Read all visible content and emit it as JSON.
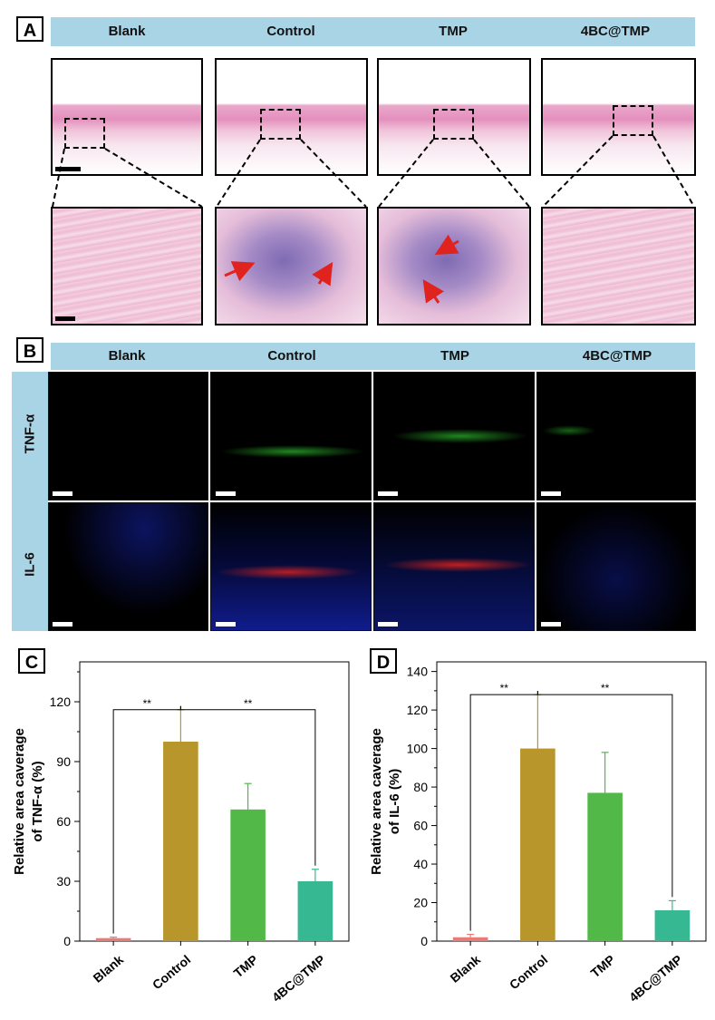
{
  "panel_a": {
    "letter": "A",
    "groups": [
      "Blank",
      "Control",
      "TMP",
      "4BC@TMP"
    ]
  },
  "panel_b": {
    "letter": "B",
    "groups": [
      "Blank",
      "Control",
      "TMP",
      "4BC@TMP"
    ],
    "rows": [
      "TNF-α",
      "IL-6"
    ]
  },
  "colors": {
    "header_bg": "#a9d4e6",
    "blank": "#e87a77",
    "control": "#b8962c",
    "tmp": "#52b948",
    "bc_tmp": "#36b893",
    "nuclei": "#1f2bb8",
    "tnf": "#2ec22e",
    "il6": "#e0231e",
    "arrow": "#e0231e"
  },
  "chart_data": [
    {
      "panel": "C",
      "type": "bar",
      "categories": [
        "Blank",
        "Control",
        "TMP",
        "4BC@TMP"
      ],
      "values": [
        1.5,
        100,
        66,
        30
      ],
      "errors": [
        0.5,
        16,
        13,
        6
      ],
      "ylabel_line1": "Relative area caverage",
      "ylabel_line2": "of TNF-α (%)",
      "ylim": [
        0,
        140
      ],
      "yticks": [
        0,
        30,
        60,
        90,
        120
      ],
      "significance": [
        {
          "from": 0,
          "to": 1,
          "label": "**"
        },
        {
          "from": 1,
          "to": 3,
          "label": "**"
        }
      ]
    },
    {
      "panel": "D",
      "type": "bar",
      "categories": [
        "Blank",
        "Control",
        "TMP",
        "4BC@TMP"
      ],
      "values": [
        2,
        100,
        77,
        16
      ],
      "errors": [
        1.5,
        28,
        21,
        5
      ],
      "ylabel_line1": "Relative area caverage",
      "ylabel_line2": "of IL-6 (%)",
      "ylim": [
        0,
        145
      ],
      "yticks": [
        0,
        20,
        40,
        60,
        80,
        100,
        120,
        140
      ],
      "significance": [
        {
          "from": 0,
          "to": 1,
          "label": "**"
        },
        {
          "from": 1,
          "to": 3,
          "label": "**"
        }
      ]
    }
  ]
}
